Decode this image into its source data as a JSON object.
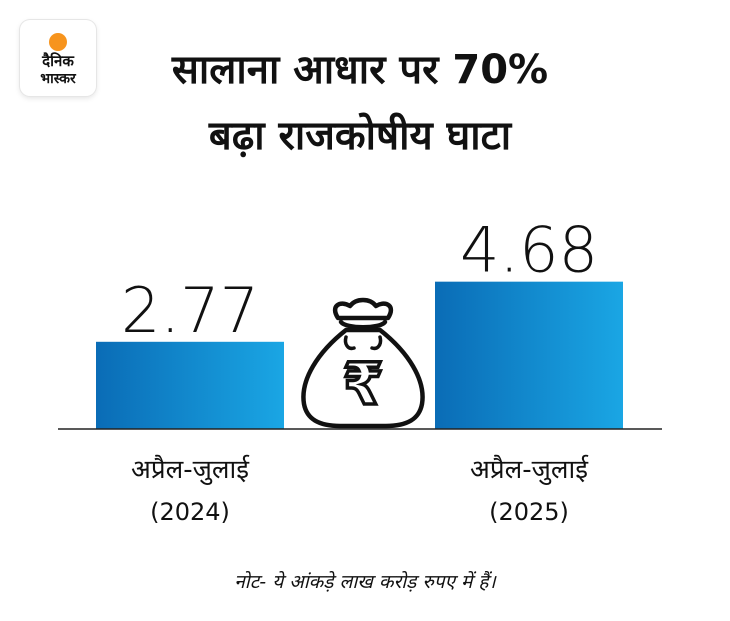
{
  "brand": {
    "logo_text_line1": "दैनिक",
    "logo_text_line2": "भास्कर",
    "accent_color": "#f7941d"
  },
  "title_lines": [
    "सालाना आधार पर 70%",
    "बढ़ा राजकोषीय घाटा"
  ],
  "chart_data": {
    "type": "bar",
    "categories": [
      [
        "अप्रैल-जुलाई",
        "(2024)"
      ],
      [
        "अप्रैल-जुलाई",
        "(2025)"
      ]
    ],
    "values": [
      2.77,
      4.68
    ],
    "value_labels": [
      "2.77",
      "4.68"
    ],
    "ylim": [
      0,
      5.4
    ],
    "grid": false,
    "bar_gradient": [
      "#0a6cb6",
      "#1aa6e4"
    ],
    "icon": "rupee-money-bag-icon"
  },
  "note": "नोट- ये आंकड़े लाख करोड़ रुपए में हैं।"
}
